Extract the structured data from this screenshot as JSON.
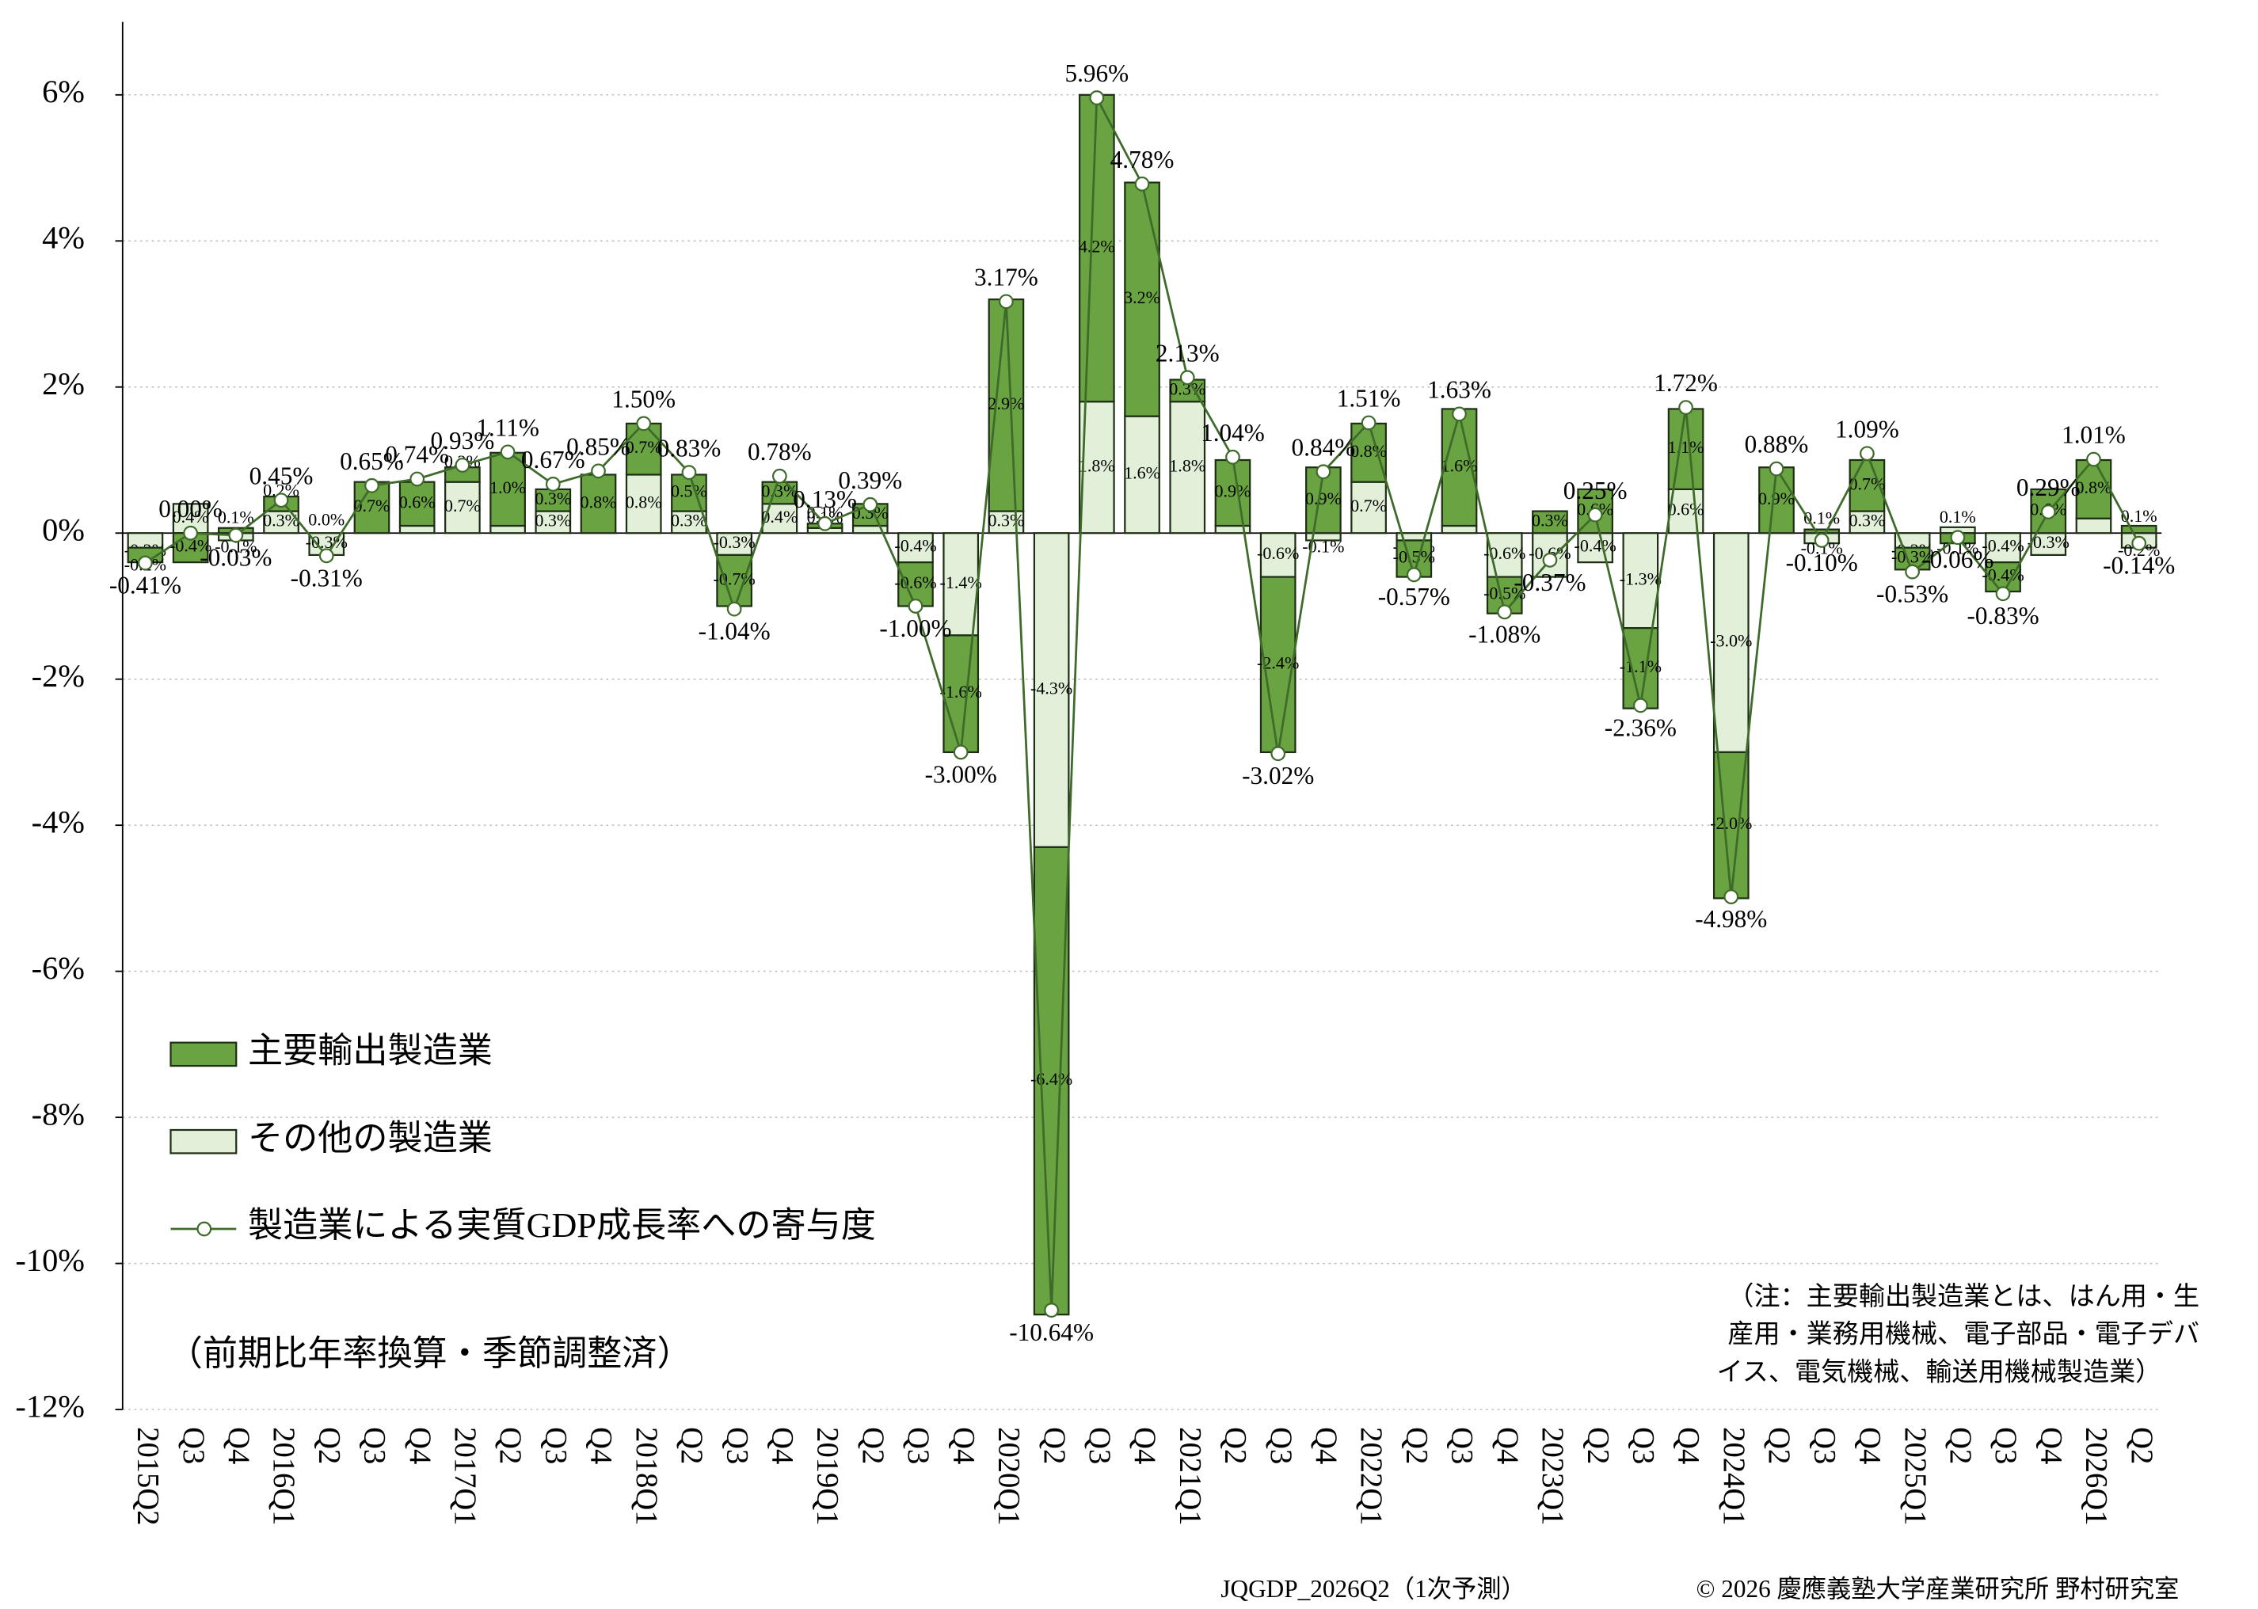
{
  "chart_data": {
    "type": "bar-line",
    "categories": [
      "2015Q2",
      "Q3",
      "Q4",
      "2016Q1",
      "Q2",
      "Q3",
      "Q4",
      "2017Q1",
      "Q2",
      "Q3",
      "Q4",
      "2018Q1",
      "Q2",
      "Q3",
      "Q4",
      "2019Q1",
      "Q2",
      "Q3",
      "Q4",
      "2020Q1",
      "Q2",
      "Q3",
      "Q4",
      "2021Q1",
      "Q2",
      "Q3",
      "Q4",
      "2022Q1",
      "Q2",
      "Q3",
      "Q4",
      "2023Q1",
      "Q2",
      "Q3",
      "Q4",
      "2024Q1",
      "Q2",
      "Q3",
      "Q4",
      "2025Q1",
      "Q2",
      "Q3",
      "Q4",
      "2026Q1",
      "Q2"
    ],
    "series": [
      {
        "name": "主要輸出製造業",
        "kind": "bar",
        "color": "#6aa442",
        "values": [
          -0.2,
          -0.4,
          0.07,
          0.2,
          0.0,
          0.7,
          0.6,
          0.2,
          1.0,
          0.3,
          0.8,
          0.7,
          0.5,
          -0.7,
          0.3,
          0.06,
          0.3,
          -0.6,
          -1.6,
          2.9,
          -6.4,
          4.2,
          3.2,
          0.3,
          0.9,
          -2.4,
          0.9,
          0.8,
          -0.5,
          1.6,
          -0.5,
          0.3,
          0.6,
          -1.1,
          1.1,
          -2.0,
          0.9,
          0.05,
          0.7,
          -0.3,
          -0.14,
          -0.4,
          0.6,
          0.8,
          0.1
        ],
        "value_labels": [
          "-0.2%",
          "-0.4%",
          "0.1%",
          "0.2%",
          "0.0%",
          "0.7%",
          "0.6%",
          "0.2%",
          "1.0%",
          "0.3%",
          "0.8%",
          "0.7%",
          "0.5%",
          "-0.7%",
          "0.3%",
          "0.1%",
          "0.3%",
          "-0.6%",
          "-1.6%",
          "2.9%",
          "-6.4%",
          "4.2%",
          "3.2%",
          "0.3%",
          "0.9%",
          "-2.4%",
          "0.9%",
          "0.8%",
          "-0.5%",
          "1.6%",
          "-0.5%",
          "0.3%",
          "0.6%",
          "-1.1%",
          "1.1%",
          "-2.0%",
          "0.9%",
          "0.1%",
          "0.7%",
          "-0.3%",
          "-0.1%",
          "-0.4%",
          "0.6%",
          "0.8%",
          "0.1%"
        ]
      },
      {
        "name": "その他の製造業",
        "kind": "bar",
        "color": "#e2f0d9",
        "values": [
          -0.2,
          0.4,
          -0.1,
          0.3,
          -0.3,
          0.0,
          0.1,
          0.7,
          0.1,
          0.3,
          0.0,
          0.8,
          0.3,
          -0.3,
          0.4,
          0.07,
          0.1,
          -0.4,
          -1.4,
          0.3,
          -4.3,
          1.8,
          1.6,
          1.8,
          0.1,
          -0.6,
          -0.1,
          0.7,
          -0.1,
          0.1,
          -0.6,
          -0.6,
          -0.4,
          -1.3,
          0.6,
          -3.0,
          0.0,
          -0.14,
          0.3,
          -0.2,
          0.08,
          -0.4,
          -0.3,
          0.2,
          -0.2
        ],
        "value_labels": [
          "-0.2%",
          "0.4%",
          "-0.1%",
          "0.3%",
          "-0.3%",
          "0.0%",
          "0.1%",
          "0.7%",
          "0.1%",
          "0.3%",
          "0.0%",
          "0.8%",
          "0.3%",
          "-0.3%",
          "0.4%",
          "0.1%",
          "0.1%",
          "-0.4%",
          "-1.4%",
          "0.3%",
          "-4.3%",
          "1.8%",
          "1.6%",
          "1.8%",
          "0.1%",
          "-0.6%",
          "-0.1%",
          "0.7%",
          "-0.1%",
          "0.1%",
          "-0.6%",
          "-0.6%",
          "-0.4%",
          "-1.3%",
          "0.6%",
          "-3.0%",
          "0.0%",
          "-0.1%",
          "0.3%",
          "-0.2%",
          "0.1%",
          "-0.4%",
          "-0.3%",
          "0.2%",
          "-0.2%"
        ]
      },
      {
        "name": "製造業による実質GDP成長率への寄与度",
        "kind": "line",
        "color": "#3e6b2a",
        "values": [
          -0.41,
          0.0,
          -0.03,
          0.45,
          -0.31,
          0.65,
          0.74,
          0.93,
          1.11,
          0.67,
          0.85,
          1.5,
          0.83,
          -1.04,
          0.78,
          0.13,
          0.39,
          -1.0,
          -3.0,
          3.17,
          -10.64,
          5.96,
          4.78,
          2.13,
          1.04,
          -3.02,
          0.84,
          1.51,
          -0.57,
          1.63,
          -1.08,
          -0.37,
          0.25,
          -2.36,
          1.72,
          -4.98,
          0.88,
          -0.1,
          1.09,
          -0.53,
          -0.06,
          -0.83,
          0.29,
          1.01,
          -0.14
        ],
        "value_labels": [
          "-0.41%",
          "0.00%",
          "-0.03%",
          "0.45%",
          "-0.31%",
          "0.65%",
          "0.74%",
          "0.93%",
          "1.11%",
          "0.67%",
          "0.85%",
          "1.50%",
          "0.83%",
          "-1.04%",
          "0.78%",
          "0.13%",
          "0.39%",
          "-1.00%",
          "-3.00%",
          "3.17%",
          "-10.64%",
          "5.96%",
          "4.78%",
          "2.13%",
          "1.04%",
          "-3.02%",
          "0.84%",
          "1.51%",
          "-0.57%",
          "1.63%",
          "-1.08%",
          "-0.37%",
          "0.25%",
          "-2.36%",
          "1.72%",
          "-4.98%",
          "0.88%",
          "-0.10%",
          "1.09%",
          "-0.53%",
          "-0.06%",
          "-0.83%",
          "0.29%",
          "1.01%",
          "-0.14%"
        ]
      }
    ],
    "ylim": [
      -12,
      7
    ],
    "yticks": [
      {
        "value": 6,
        "label": "6%"
      },
      {
        "value": 4,
        "label": "4%"
      },
      {
        "value": 2,
        "label": "2%"
      },
      {
        "value": 0,
        "label": "0%"
      },
      {
        "value": -2,
        "label": "-2%"
      },
      {
        "value": -4,
        "label": "-4%"
      },
      {
        "value": -6,
        "label": "-6%"
      },
      {
        "value": -8,
        "label": "-8%"
      },
      {
        "value": -10,
        "label": "-10%"
      },
      {
        "value": -12,
        "label": "-12%"
      }
    ],
    "grid": true,
    "subtitle": "（前期比年率換算・季節調整済）",
    "note": [
      "（注：主要輸出製造業とは、はん用・生",
      "産用・業務用機械、電子部品・電子デバ",
      "イス、電気機械、輸送用機械製造業）"
    ],
    "footer": [
      "JQGDP_2026Q2（1次予測）",
      "© 2026 慶應義塾大学産業研究所 野村研究室"
    ]
  }
}
